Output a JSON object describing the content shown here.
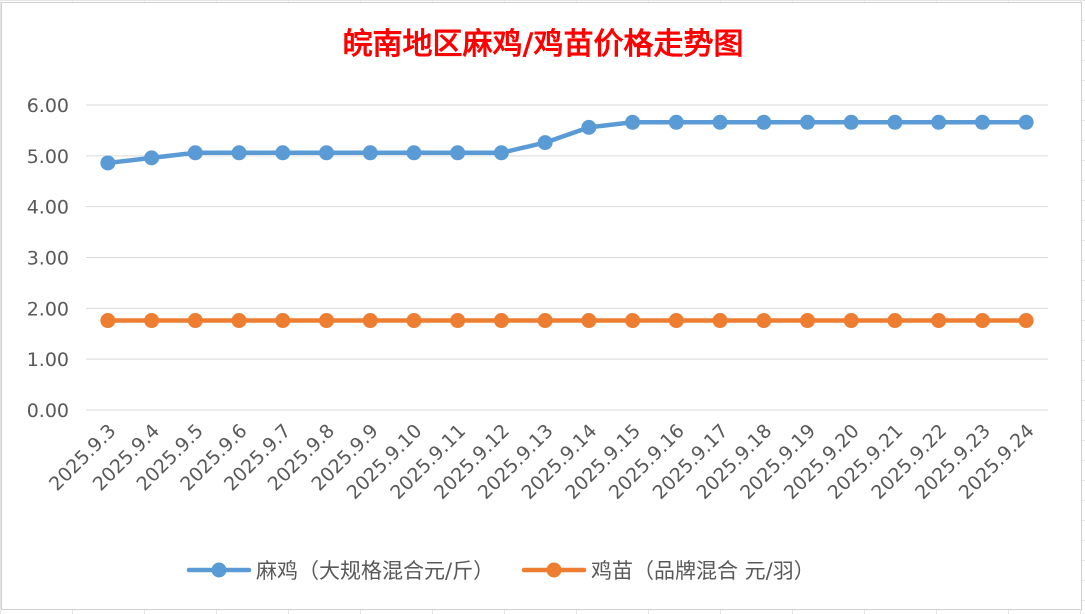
{
  "chart_data": {
    "type": "line",
    "title": "皖南地区麻鸡/鸡苗价格走势图",
    "xlabel": "",
    "ylabel": "",
    "categories": [
      "2025.9.3",
      "2025.9.4",
      "2025.9.5",
      "2025.9.6",
      "2025.9.7",
      "2025.9.8",
      "2025.9.9",
      "2025.9.10",
      "2025.9.11",
      "2025.9.12",
      "2025.9.13",
      "2025.9.14",
      "2025.9.15",
      "2025.9.16",
      "2025.9.17",
      "2025.9.18",
      "2025.9.19",
      "2025.9.20",
      "2025.9.21",
      "2025.9.22",
      "2025.9.23",
      "2025.9.24"
    ],
    "y_ticks": [
      "0.00",
      "1.00",
      "2.00",
      "3.00",
      "4.00",
      "5.00",
      "6.00"
    ],
    "ylim": [
      0,
      6
    ],
    "grid": "horizontal",
    "legend_position": "bottom",
    "series": [
      {
        "name": "麻鸡（大规格混合元/斤）",
        "color": "#5b9bd5",
        "values": [
          4.86,
          4.96,
          5.06,
          5.06,
          5.06,
          5.06,
          5.06,
          5.06,
          5.06,
          5.06,
          5.26,
          5.56,
          5.66,
          5.66,
          5.66,
          5.66,
          5.66,
          5.66,
          5.66,
          5.66,
          5.66,
          5.66
        ]
      },
      {
        "name": "鸡苗（品牌混合 元/羽）",
        "color": "#ed7d31",
        "values": [
          1.76,
          1.76,
          1.76,
          1.76,
          1.76,
          1.76,
          1.76,
          1.76,
          1.76,
          1.76,
          1.76,
          1.76,
          1.76,
          1.76,
          1.76,
          1.76,
          1.76,
          1.76,
          1.76,
          1.76,
          1.76,
          1.76
        ]
      }
    ]
  }
}
